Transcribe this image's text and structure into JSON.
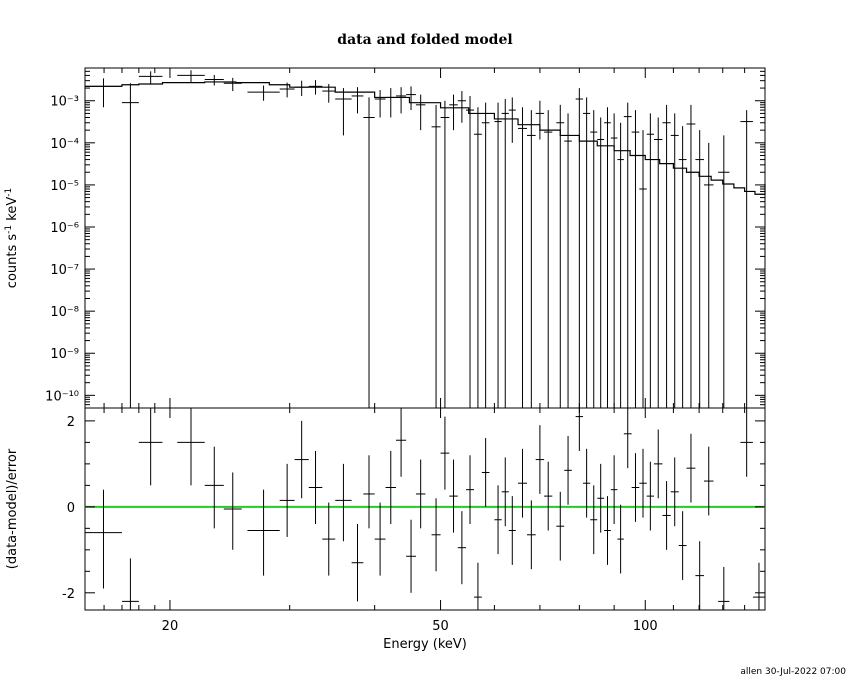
{
  "footer": "allen 30-Jul-2022 07:00",
  "chart_data": [
    {
      "type": "scatter",
      "panel": "top",
      "title": "data and folded model",
      "ylabel": "counts s^-1 keV^-1",
      "xscale": "log",
      "yscale": "log",
      "xlim": [
        15,
        150
      ],
      "ylim": [
        5e-11,
        0.006
      ],
      "x_ticks": [
        20,
        50,
        100
      ],
      "y_ticks": [
        {
          "value": 0.001,
          "label": "10⁻³"
        },
        {
          "value": 0.0001,
          "label": "10⁻⁴"
        },
        {
          "value": 1e-05,
          "label": "10⁻⁵"
        },
        {
          "value": 1e-06,
          "label": "10⁻⁶"
        },
        {
          "value": 1e-07,
          "label": "10⁻⁷"
        },
        {
          "value": 1e-08,
          "label": "10⁻⁸"
        },
        {
          "value": 1e-09,
          "label": "10⁻⁹"
        },
        {
          "value": 1e-10,
          "label": "10⁻¹⁰"
        }
      ],
      "data": [
        {
          "xlo": 15.0,
          "xhi": 17.0,
          "y": 0.0022,
          "ylo": 0.0007,
          "yhi": 0.0034
        },
        {
          "xlo": 17.0,
          "xhi": 18.0,
          "y": 0.0009,
          "ylo": 1e-11,
          "yhi": 0.0026
        },
        {
          "xlo": 18.0,
          "xhi": 19.5,
          "y": 0.0038,
          "ylo": 0.0025,
          "yhi": 0.005
        },
        {
          "xlo": 20.5,
          "xhi": 22.5,
          "y": 0.004,
          "ylo": 0.0028,
          "yhi": 0.0053
        },
        {
          "xlo": 22.5,
          "xhi": 24.0,
          "y": 0.0032,
          "ylo": 0.0023,
          "yhi": 0.0041
        },
        {
          "xlo": 24.0,
          "xhi": 25.5,
          "y": 0.0026,
          "ylo": 0.0017,
          "yhi": 0.0035
        },
        {
          "xlo": 26.0,
          "xhi": 29.0,
          "y": 0.0016,
          "ylo": 0.001,
          "yhi": 0.0023
        },
        {
          "xlo": 29.0,
          "xhi": 30.5,
          "y": 0.0019,
          "ylo": 0.0012,
          "yhi": 0.0027
        },
        {
          "xlo": 30.5,
          "xhi": 32.0,
          "y": 0.0021,
          "ylo": 0.0013,
          "yhi": 0.003
        },
        {
          "xlo": 32.0,
          "xhi": 33.5,
          "y": 0.0022,
          "ylo": 0.0014,
          "yhi": 0.0031
        },
        {
          "xlo": 33.5,
          "xhi": 35.0,
          "y": 0.0017,
          "ylo": 0.0009,
          "yhi": 0.0025
        },
        {
          "xlo": 35.0,
          "xhi": 37.0,
          "y": 0.0011,
          "ylo": 0.00015,
          "yhi": 0.002
        },
        {
          "xlo": 37.0,
          "xhi": 38.5,
          "y": 0.0013,
          "ylo": 0.0005,
          "yhi": 0.0021
        },
        {
          "xlo": 38.5,
          "xhi": 40.0,
          "y": 0.0004,
          "ylo": 1e-11,
          "yhi": 0.0012
        },
        {
          "xlo": 40.0,
          "xhi": 41.5,
          "y": 0.0011,
          "ylo": 0.0004,
          "yhi": 0.0018
        },
        {
          "xlo": 41.5,
          "xhi": 43.0,
          "y": 0.0012,
          "ylo": 0.0004,
          "yhi": 0.002
        },
        {
          "xlo": 43.0,
          "xhi": 44.5,
          "y": 0.0013,
          "ylo": 0.0005,
          "yhi": 0.0021
        },
        {
          "xlo": 44.5,
          "xhi": 46.0,
          "y": 0.0014,
          "ylo": 0.0006,
          "yhi": 0.0022
        },
        {
          "xlo": 46.0,
          "xhi": 47.5,
          "y": 0.0008,
          "ylo": 0.0002,
          "yhi": 0.0014
        },
        {
          "xlo": 48.5,
          "xhi": 50.0,
          "y": 0.00024,
          "ylo": 1e-11,
          "yhi": 0.0008
        },
        {
          "xlo": 50.0,
          "xhi": 51.5,
          "y": 0.0004,
          "ylo": 1e-11,
          "yhi": 0.001
        },
        {
          "xlo": 51.5,
          "xhi": 53.0,
          "y": 0.0008,
          "ylo": 0.0002,
          "yhi": 0.0014
        },
        {
          "xlo": 53.0,
          "xhi": 54.5,
          "y": 0.001,
          "ylo": 0.0003,
          "yhi": 0.0017
        },
        {
          "xlo": 54.5,
          "xhi": 56.0,
          "y": 0.0006,
          "ylo": 1e-11,
          "yhi": 0.0013
        },
        {
          "xlo": 56.0,
          "xhi": 57.5,
          "y": 0.00016,
          "ylo": 1e-11,
          "yhi": 0.0007
        },
        {
          "xlo": 57.5,
          "xhi": 59.0,
          "y": 0.0003,
          "ylo": 1e-11,
          "yhi": 0.0009
        },
        {
          "xlo": 60.0,
          "xhi": 61.5,
          "y": 0.00032,
          "ylo": 1e-11,
          "yhi": 0.0009
        },
        {
          "xlo": 61.5,
          "xhi": 63.0,
          "y": 0.0005,
          "ylo": 1e-11,
          "yhi": 0.0011
        },
        {
          "xlo": 63.0,
          "xhi": 64.5,
          "y": 0.0006,
          "ylo": 0.0001,
          "yhi": 0.0012
        },
        {
          "xlo": 65.0,
          "xhi": 67.0,
          "y": 0.00022,
          "ylo": 1e-11,
          "yhi": 0.0007
        },
        {
          "xlo": 67.0,
          "xhi": 69.0,
          "y": 0.00015,
          "ylo": 1e-11,
          "yhi": 0.0006
        },
        {
          "xlo": 69.0,
          "xhi": 71.0,
          "y": 0.0005,
          "ylo": 0.00012,
          "yhi": 0.001
        },
        {
          "xlo": 71.0,
          "xhi": 73.0,
          "y": 0.00018,
          "ylo": 1e-11,
          "yhi": 0.0006
        },
        {
          "xlo": 74.0,
          "xhi": 76.0,
          "y": 0.0003,
          "ylo": 1e-11,
          "yhi": 0.0008
        },
        {
          "xlo": 76.0,
          "xhi": 78.0,
          "y": 0.00011,
          "ylo": 1e-11,
          "yhi": 0.0005
        },
        {
          "xlo": 79.0,
          "xhi": 81.0,
          "y": 0.0011,
          "ylo": 1e-11,
          "yhi": 0.002
        },
        {
          "xlo": 81.0,
          "xhi": 83.0,
          "y": 0.0005,
          "ylo": 1e-11,
          "yhi": 0.0012
        },
        {
          "xlo": 83.0,
          "xhi": 85.0,
          "y": 0.00018,
          "ylo": 1e-11,
          "yhi": 0.0006
        },
        {
          "xlo": 85.0,
          "xhi": 87.0,
          "y": 0.00012,
          "ylo": 1e-11,
          "yhi": 0.0004
        },
        {
          "xlo": 87.0,
          "xhi": 89.0,
          "y": 0.0003,
          "ylo": 1e-11,
          "yhi": 0.0007
        },
        {
          "xlo": 89.0,
          "xhi": 91.0,
          "y": 0.00013,
          "ylo": 1e-11,
          "yhi": 0.0005
        },
        {
          "xlo": 91.0,
          "xhi": 93.0,
          "y": 4e-05,
          "ylo": 1e-11,
          "yhi": 0.0003
        },
        {
          "xlo": 93.0,
          "xhi": 95.5,
          "y": 0.00042,
          "ylo": 1e-11,
          "yhi": 0.0009
        },
        {
          "xlo": 95.5,
          "xhi": 98.0,
          "y": 0.00018,
          "ylo": 1e-11,
          "yhi": 0.0006
        },
        {
          "xlo": 98.0,
          "xhi": 100.5,
          "y": 8e-06,
          "ylo": 1e-11,
          "yhi": 0.0002
        },
        {
          "xlo": 100.5,
          "xhi": 103.0,
          "y": 0.00016,
          "ylo": 1e-11,
          "yhi": 0.0005
        },
        {
          "xlo": 103.0,
          "xhi": 106.0,
          "y": 0.00012,
          "ylo": 1e-11,
          "yhi": 0.0004
        },
        {
          "xlo": 106.0,
          "xhi": 109.0,
          "y": 0.0003,
          "ylo": 1e-11,
          "yhi": 0.0008
        },
        {
          "xlo": 109.0,
          "xhi": 112.0,
          "y": 0.00015,
          "ylo": 1e-11,
          "yhi": 0.0005
        },
        {
          "xlo": 112.0,
          "xhi": 115.0,
          "y": 4e-05,
          "ylo": 1e-11,
          "yhi": 0.00025
        },
        {
          "xlo": 115.0,
          "xhi": 118.5,
          "y": 0.00028,
          "ylo": 1e-11,
          "yhi": 0.0008
        },
        {
          "xlo": 118.5,
          "xhi": 122.0,
          "y": 4e-05,
          "ylo": 1e-11,
          "yhi": 0.0002
        },
        {
          "xlo": 122.0,
          "xhi": 126.0,
          "y": 1e-05,
          "ylo": 1e-11,
          "yhi": 0.0001
        },
        {
          "xlo": 128.0,
          "xhi": 133.0,
          "y": 2e-05,
          "ylo": 1e-11,
          "yhi": 0.00015
        },
        {
          "xlo": 138.0,
          "xhi": 144.0,
          "y": 0.00032,
          "ylo": 1e-11,
          "yhi": 0.0006
        }
      ],
      "model": {
        "x": [
          15,
          17,
          18,
          19.5,
          22.5,
          25,
          28,
          30,
          35,
          40,
          45,
          50,
          55,
          60,
          65,
          70,
          75,
          80,
          85,
          90,
          95,
          100,
          105,
          110,
          115,
          120,
          125,
          130,
          135,
          140,
          145,
          150
        ],
        "y": [
          0.0022,
          0.0024,
          0.0025,
          0.0027,
          0.0028,
          0.0027,
          0.0024,
          0.0021,
          0.0016,
          0.0012,
          0.0009,
          0.00068,
          0.0005,
          0.00037,
          0.00027,
          0.0002,
          0.00015,
          0.00011,
          8.5e-05,
          6.5e-05,
          5e-05,
          4e-05,
          3.2e-05,
          2.5e-05,
          2e-05,
          1.6e-05,
          1.3e-05,
          1.05e-05,
          8.5e-06,
          7e-06,
          6e-06,
          1.05e-05
        ]
      }
    },
    {
      "type": "scatter",
      "panel": "bottom",
      "xlabel": "Energy (keV)",
      "ylabel": "(data-model)/error",
      "xscale": "log",
      "xlim": [
        15,
        150
      ],
      "ylim": [
        -2.4,
        2.3
      ],
      "x_ticks": [
        20,
        50,
        100
      ],
      "y_ticks": [
        -2,
        0,
        2
      ],
      "zero_line_color": "#22cc22",
      "data": [
        {
          "xlo": 15.0,
          "xhi": 17.0,
          "y": -0.6,
          "ylo": -1.9,
          "yhi": 0.4
        },
        {
          "xlo": 17.0,
          "xhi": 18.0,
          "y": -2.2,
          "ylo": -2.4,
          "yhi": -1.2
        },
        {
          "xlo": 18.0,
          "xhi": 19.5,
          "y": 1.5,
          "ylo": 0.5,
          "yhi": 2.4
        },
        {
          "xlo": 20.5,
          "xhi": 22.5,
          "y": 1.5,
          "ylo": 0.5,
          "yhi": 2.4
        },
        {
          "xlo": 22.5,
          "xhi": 24.0,
          "y": 0.5,
          "ylo": -0.5,
          "yhi": 1.4
        },
        {
          "xlo": 24.0,
          "xhi": 25.5,
          "y": -0.05,
          "ylo": -1.0,
          "yhi": 0.8
        },
        {
          "xlo": 26.0,
          "xhi": 29.0,
          "y": -0.55,
          "ylo": -1.6,
          "yhi": 0.4
        },
        {
          "xlo": 29.0,
          "xhi": 30.5,
          "y": 0.15,
          "ylo": -0.7,
          "yhi": 1.0
        },
        {
          "xlo": 30.5,
          "xhi": 32.0,
          "y": 1.1,
          "ylo": 0.2,
          "yhi": 2.0
        },
        {
          "xlo": 32.0,
          "xhi": 33.5,
          "y": 0.45,
          "ylo": -0.4,
          "yhi": 1.3
        },
        {
          "xlo": 33.5,
          "xhi": 35.0,
          "y": -0.75,
          "ylo": -1.6,
          "yhi": 0.1
        },
        {
          "xlo": 35.0,
          "xhi": 37.0,
          "y": 0.15,
          "ylo": -0.8,
          "yhi": 1.0
        },
        {
          "xlo": 37.0,
          "xhi": 38.5,
          "y": -1.3,
          "ylo": -2.2,
          "yhi": -0.4
        },
        {
          "xlo": 38.5,
          "xhi": 40.0,
          "y": 0.3,
          "ylo": -0.5,
          "yhi": 1.2
        },
        {
          "xlo": 40.0,
          "xhi": 41.5,
          "y": -0.75,
          "ylo": -1.6,
          "yhi": 0.1
        },
        {
          "xlo": 41.5,
          "xhi": 43.0,
          "y": 0.45,
          "ylo": -0.4,
          "yhi": 1.3
        },
        {
          "xlo": 43.0,
          "xhi": 44.5,
          "y": 1.55,
          "ylo": 0.7,
          "yhi": 2.4
        },
        {
          "xlo": 44.5,
          "xhi": 46.0,
          "y": -1.15,
          "ylo": -2.0,
          "yhi": -0.3
        },
        {
          "xlo": 46.0,
          "xhi": 47.5,
          "y": 0.3,
          "ylo": -0.5,
          "yhi": 1.1
        },
        {
          "xlo": 48.5,
          "xhi": 50.0,
          "y": -0.65,
          "ylo": -1.5,
          "yhi": 0.2
        },
        {
          "xlo": 50.0,
          "xhi": 51.5,
          "y": 1.25,
          "ylo": 0.4,
          "yhi": 2.1
        },
        {
          "xlo": 51.5,
          "xhi": 53.0,
          "y": 0.25,
          "ylo": -0.6,
          "yhi": 1.1
        },
        {
          "xlo": 53.0,
          "xhi": 54.5,
          "y": -0.95,
          "ylo": -1.8,
          "yhi": -0.1
        },
        {
          "xlo": 54.5,
          "xhi": 56.0,
          "y": 0.4,
          "ylo": -0.4,
          "yhi": 1.2
        },
        {
          "xlo": 56.0,
          "xhi": 57.5,
          "y": -2.1,
          "ylo": -2.4,
          "yhi": -1.3
        },
        {
          "xlo": 57.5,
          "xhi": 59.0,
          "y": 0.8,
          "ylo": 0.0,
          "yhi": 1.6
        },
        {
          "xlo": 60.0,
          "xhi": 61.5,
          "y": -0.3,
          "ylo": -1.1,
          "yhi": 0.5
        },
        {
          "xlo": 61.5,
          "xhi": 63.0,
          "y": 0.35,
          "ylo": -0.45,
          "yhi": 1.15
        },
        {
          "xlo": 63.0,
          "xhi": 64.5,
          "y": -0.55,
          "ylo": -1.35,
          "yhi": 0.25
        },
        {
          "xlo": 65.0,
          "xhi": 67.0,
          "y": 0.55,
          "ylo": -0.25,
          "yhi": 1.35
        },
        {
          "xlo": 67.0,
          "xhi": 69.0,
          "y": -0.65,
          "ylo": -1.45,
          "yhi": 0.15
        },
        {
          "xlo": 69.0,
          "xhi": 71.0,
          "y": 1.1,
          "ylo": 0.3,
          "yhi": 1.9
        },
        {
          "xlo": 71.0,
          "xhi": 73.0,
          "y": 0.25,
          "ylo": -0.55,
          "yhi": 1.05
        },
        {
          "xlo": 74.0,
          "xhi": 76.0,
          "y": -0.45,
          "ylo": -1.25,
          "yhi": 0.35
        },
        {
          "xlo": 76.0,
          "xhi": 78.0,
          "y": 0.85,
          "ylo": 0.05,
          "yhi": 1.65
        },
        {
          "xlo": 79.0,
          "xhi": 81.0,
          "y": 2.1,
          "ylo": 1.3,
          "yhi": 2.3
        },
        {
          "xlo": 81.0,
          "xhi": 83.0,
          "y": 0.55,
          "ylo": -0.25,
          "yhi": 1.35
        },
        {
          "xlo": 83.0,
          "xhi": 85.0,
          "y": -0.3,
          "ylo": -1.1,
          "yhi": 0.5
        },
        {
          "xlo": 85.0,
          "xhi": 87.0,
          "y": 0.2,
          "ylo": -0.6,
          "yhi": 1.0
        },
        {
          "xlo": 87.0,
          "xhi": 89.0,
          "y": -0.55,
          "ylo": -1.35,
          "yhi": 0.25
        },
        {
          "xlo": 89.0,
          "xhi": 91.0,
          "y": 0.4,
          "ylo": -0.4,
          "yhi": 1.2
        },
        {
          "xlo": 91.0,
          "xhi": 93.0,
          "y": -0.75,
          "ylo": -1.55,
          "yhi": 0.05
        },
        {
          "xlo": 93.0,
          "xhi": 95.5,
          "y": 1.7,
          "ylo": 0.9,
          "yhi": 2.3
        },
        {
          "xlo": 95.5,
          "xhi": 98.0,
          "y": 0.45,
          "ylo": -0.35,
          "yhi": 1.25
        },
        {
          "xlo": 98.0,
          "xhi": 100.5,
          "y": 0.55,
          "ylo": -0.25,
          "yhi": 1.35
        },
        {
          "xlo": 100.5,
          "xhi": 103.0,
          "y": 0.25,
          "ylo": -0.55,
          "yhi": 1.05
        },
        {
          "xlo": 103.0,
          "xhi": 106.0,
          "y": 1.0,
          "ylo": 0.2,
          "yhi": 1.8
        },
        {
          "xlo": 106.0,
          "xhi": 109.0,
          "y": -0.2,
          "ylo": -1.0,
          "yhi": 0.6
        },
        {
          "xlo": 109.0,
          "xhi": 112.0,
          "y": 0.35,
          "ylo": -0.45,
          "yhi": 1.15
        },
        {
          "xlo": 112.0,
          "xhi": 115.0,
          "y": -0.9,
          "ylo": -1.7,
          "yhi": -0.1
        },
        {
          "xlo": 115.0,
          "xhi": 118.5,
          "y": 0.9,
          "ylo": 0.1,
          "yhi": 1.7
        },
        {
          "xlo": 118.5,
          "xhi": 122.0,
          "y": -1.6,
          "ylo": -2.4,
          "yhi": -0.8
        },
        {
          "xlo": 122.0,
          "xhi": 126.0,
          "y": 0.6,
          "ylo": -0.2,
          "yhi": 1.4
        },
        {
          "xlo": 128.0,
          "xhi": 133.0,
          "y": -2.2,
          "ylo": -2.4,
          "yhi": -1.4
        },
        {
          "xlo": 138.0,
          "xhi": 144.0,
          "y": 1.5,
          "ylo": 0.7,
          "yhi": 2.3
        },
        {
          "xlo": 144.0,
          "xhi": 150.0,
          "y": -2.1,
          "ylo": -2.4,
          "yhi": -1.3
        }
      ]
    }
  ]
}
